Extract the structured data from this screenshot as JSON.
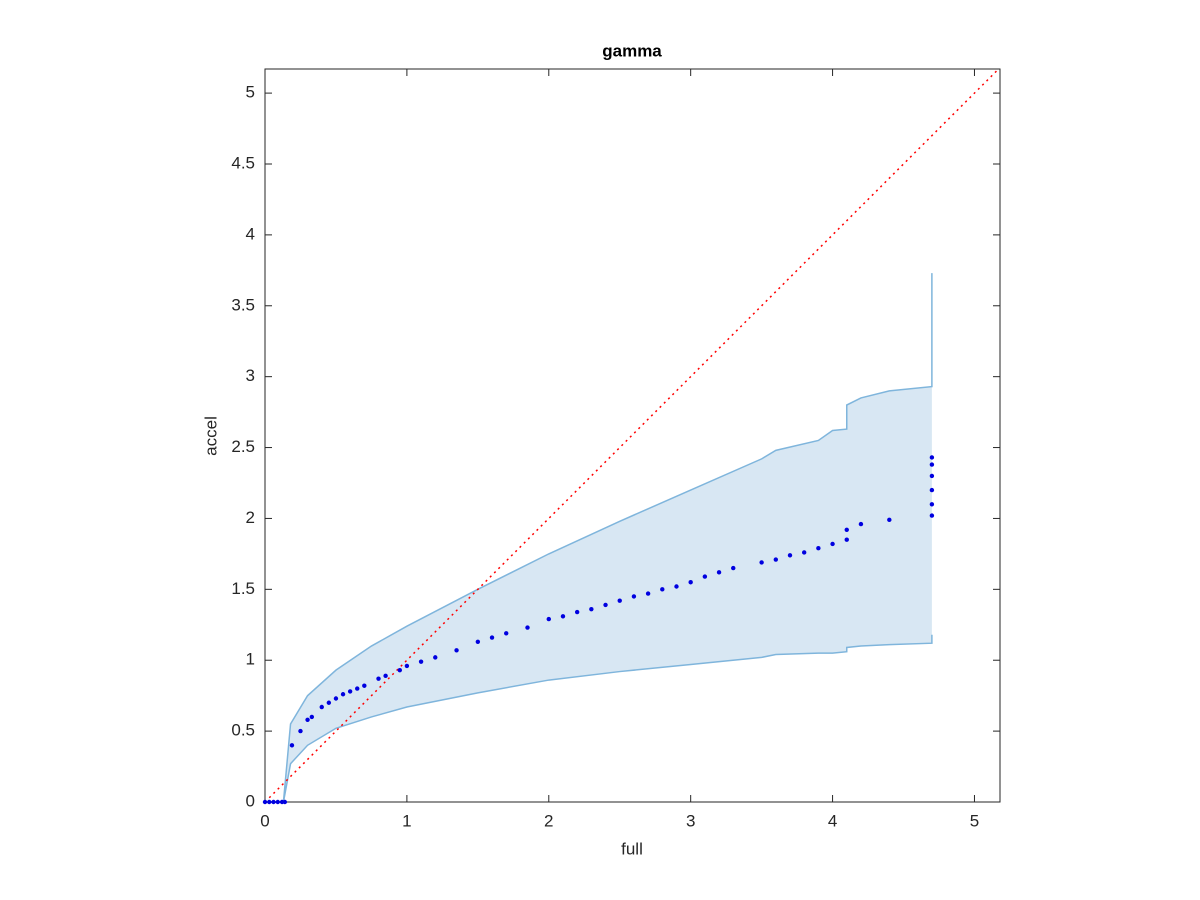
{
  "chart_data": {
    "type": "scatter",
    "title": "gamma",
    "x_label": "full",
    "y_label": "accel",
    "xlim": [
      0,
      5.18
    ],
    "ylim": [
      0,
      5.17
    ],
    "xticks": [
      0,
      1,
      2,
      3,
      4,
      5
    ],
    "yticks": [
      0,
      0.5,
      1,
      1.5,
      2,
      2.5,
      3,
      3.5,
      4,
      4.5,
      5
    ],
    "band": {
      "color": "#7fb5dc",
      "fill": "#d8e7f3",
      "x": [
        0,
        0.13,
        0.18,
        0.3,
        0.5,
        0.75,
        1,
        1.5,
        2,
        2.5,
        3,
        3.5,
        3.6,
        3.9,
        4.0,
        4.1,
        4.1,
        4.2,
        4.4,
        4.7,
        4.7
      ],
      "upper": [
        0,
        0,
        0.55,
        0.75,
        0.93,
        1.1,
        1.24,
        1.5,
        1.75,
        1.98,
        2.2,
        2.42,
        2.48,
        2.55,
        2.62,
        2.63,
        2.8,
        2.85,
        2.9,
        2.93,
        3.73
      ],
      "lower": [
        0,
        0,
        0.27,
        0.4,
        0.52,
        0.6,
        0.67,
        0.77,
        0.86,
        0.92,
        0.97,
        1.02,
        1.04,
        1.05,
        1.05,
        1.06,
        1.09,
        1.1,
        1.11,
        1.12,
        1.18
      ]
    },
    "reference": {
      "color": "#ff0000",
      "x": [
        0,
        5.18
      ],
      "values": [
        0,
        5.18
      ]
    },
    "series": [
      {
        "color": "#0000e0",
        "x": [
          0,
          0.03,
          0.06,
          0.09,
          0.12,
          0.14,
          0.19,
          0.25,
          0.3,
          0.33,
          0.4,
          0.45,
          0.5,
          0.55,
          0.6,
          0.65,
          0.7,
          0.8,
          0.85,
          0.95,
          1.0,
          1.1,
          1.2,
          1.35,
          1.5,
          1.6,
          1.7,
          1.85,
          2.0,
          2.1,
          2.2,
          2.3,
          2.4,
          2.5,
          2.6,
          2.7,
          2.8,
          2.9,
          3.0,
          3.1,
          3.2,
          3.3,
          3.5,
          3.6,
          3.7,
          3.8,
          3.9,
          4.0,
          4.1,
          4.1,
          4.2,
          4.4,
          4.7,
          4.7,
          4.7,
          4.7,
          4.7,
          4.7
        ],
        "values": [
          0,
          0,
          0,
          0,
          0,
          0,
          0.4,
          0.5,
          0.58,
          0.6,
          0.67,
          0.7,
          0.73,
          0.76,
          0.78,
          0.8,
          0.82,
          0.87,
          0.89,
          0.93,
          0.96,
          0.99,
          1.02,
          1.07,
          1.13,
          1.16,
          1.19,
          1.23,
          1.29,
          1.31,
          1.34,
          1.36,
          1.39,
          1.42,
          1.45,
          1.47,
          1.5,
          1.52,
          1.55,
          1.59,
          1.62,
          1.65,
          1.69,
          1.71,
          1.74,
          1.76,
          1.79,
          1.82,
          1.85,
          1.92,
          1.96,
          1.99,
          2.02,
          2.1,
          2.2,
          2.3,
          2.38,
          2.43
        ]
      }
    ]
  }
}
